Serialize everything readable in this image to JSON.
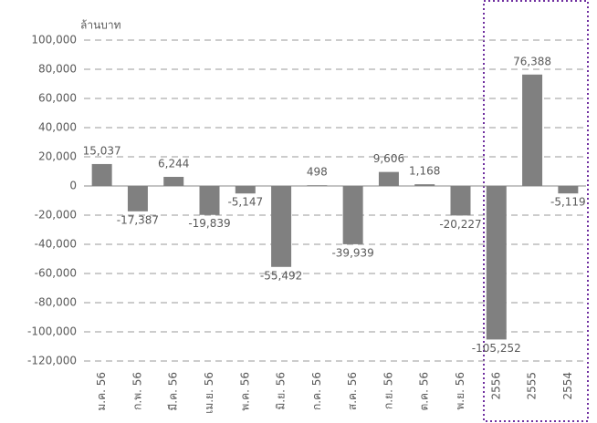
{
  "chart_data": {
    "type": "bar",
    "y_axis_label": "ล้านบาท",
    "categories": [
      "ม.ค. 56",
      "ก.พ. 56",
      "มี.ค. 56",
      "เม.ย. 56",
      "พ.ค. 56",
      "มิ.ย. 56",
      "ก.ค. 56",
      "ส.ค. 56",
      "ก.ย. 56",
      "ต.ค. 56",
      "พ.ย. 56",
      "2556",
      "2555",
      "2554"
    ],
    "values": [
      15037,
      -17387,
      6244,
      -19839,
      -5147,
      -55492,
      498,
      -39939,
      9606,
      1168,
      -20227,
      -105252,
      76388,
      -5119
    ],
    "value_labels": [
      "15,037",
      "-17,387",
      "6,244",
      "-19,839",
      "-5,147",
      "-55,492",
      "498",
      "-39,939",
      "9,606",
      "1,168",
      "-20,227",
      "-105,252",
      "76,388",
      "-5,119"
    ],
    "color": "#808080",
    "ylim": [
      -120000,
      100000
    ],
    "yticks": [
      {
        "value": 100000,
        "label": "100,000"
      },
      {
        "value": 80000,
        "label": "80,000"
      },
      {
        "value": 60000,
        "label": "60,000"
      },
      {
        "value": 40000,
        "label": "40,000"
      },
      {
        "value": 20000,
        "label": "20,000"
      },
      0,
      {
        "value": -20000,
        "label": "-20,000"
      },
      {
        "value": -40000,
        "label": "-40,000"
      },
      {
        "value": -60000,
        "label": "-60,000"
      },
      {
        "value": -80000,
        "label": "-80,000"
      },
      {
        "value": -100000,
        "label": "-100,000"
      },
      {
        "value": -120000,
        "label": "-120,000"
      }
    ],
    "grid": true
  }
}
